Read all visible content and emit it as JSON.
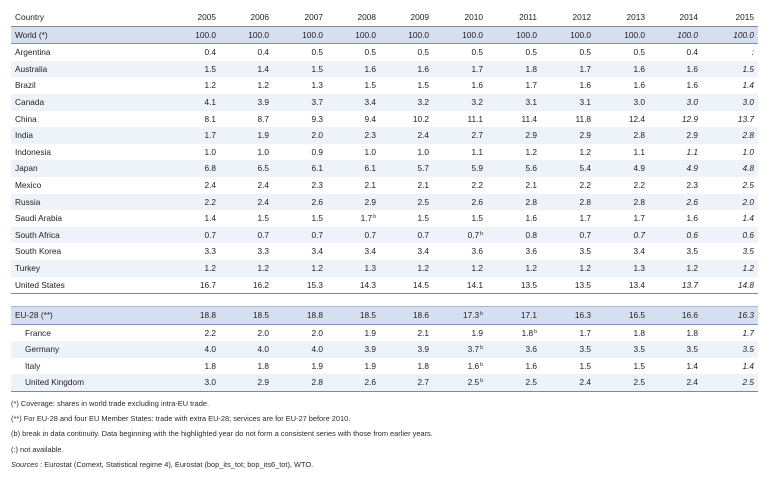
{
  "header": {
    "country_label": "Country",
    "years": [
      "2005",
      "2006",
      "2007",
      "2008",
      "2009",
      "2010",
      "2011",
      "2012",
      "2013",
      "2014",
      "2015"
    ]
  },
  "world": {
    "name": "World (*)",
    "values": [
      "100.0",
      "100.0",
      "100.0",
      "100.0",
      "100.0",
      "100.0",
      "100.0",
      "100.0",
      "100.0",
      "100.0",
      "100.0"
    ],
    "flags": [
      "",
      "",
      "",
      "",
      "",
      "",
      "",
      "",
      "",
      "",
      ""
    ],
    "italic": [
      9,
      10
    ]
  },
  "countries": [
    {
      "name": "Argentina",
      "values": [
        "0.4",
        "0.4",
        "0.5",
        "0.5",
        "0.5",
        "0.5",
        "0.5",
        "0.5",
        "0.5",
        "0.4",
        ":"
      ],
      "flags": [
        "",
        "",
        "",
        "",
        "",
        "",
        "",
        "",
        "",
        "",
        ""
      ],
      "italic": [
        10
      ]
    },
    {
      "name": "Australia",
      "values": [
        "1.5",
        "1.4",
        "1.5",
        "1.6",
        "1.6",
        "1.7",
        "1.8",
        "1.7",
        "1.6",
        "1.6",
        "1.5"
      ],
      "flags": [
        "",
        "",
        "",
        "",
        "",
        "",
        "",
        "",
        "",
        "",
        ""
      ],
      "italic": [
        10
      ]
    },
    {
      "name": "Brazil",
      "values": [
        "1.2",
        "1.2",
        "1.3",
        "1.5",
        "1.5",
        "1.6",
        "1.7",
        "1.6",
        "1.6",
        "1.6",
        "1.4"
      ],
      "flags": [
        "",
        "",
        "",
        "",
        "",
        "",
        "",
        "",
        "",
        "",
        ""
      ],
      "italic": [
        10
      ]
    },
    {
      "name": "Canada",
      "values": [
        "4.1",
        "3.9",
        "3.7",
        "3.4",
        "3.2",
        "3.2",
        "3.1",
        "3.1",
        "3.0",
        "3.0",
        "3.0"
      ],
      "flags": [
        "",
        "",
        "",
        "",
        "",
        "",
        "",
        "",
        "",
        "",
        ""
      ],
      "italic": [
        9,
        10
      ]
    },
    {
      "name": "China",
      "values": [
        "8.1",
        "8.7",
        "9.3",
        "9.4",
        "10.2",
        "11.1",
        "11.4",
        "11.8",
        "12.4",
        "12.9",
        "13.7"
      ],
      "flags": [
        "",
        "",
        "",
        "",
        "",
        "",
        "",
        "",
        "",
        "",
        ""
      ],
      "italic": [
        9,
        10
      ]
    },
    {
      "name": "India",
      "values": [
        "1.7",
        "1.9",
        "2.0",
        "2.3",
        "2.4",
        "2.7",
        "2.9",
        "2.9",
        "2.8",
        "2.9",
        "2.8"
      ],
      "flags": [
        "",
        "",
        "",
        "",
        "",
        "",
        "",
        "",
        "",
        "",
        ""
      ],
      "italic": [
        10
      ]
    },
    {
      "name": "Indonesia",
      "values": [
        "1.0",
        "1.0",
        "0.9",
        "1.0",
        "1.0",
        "1.1",
        "1.2",
        "1.2",
        "1.1",
        "1.1",
        "1.0"
      ],
      "flags": [
        "",
        "",
        "",
        "",
        "",
        "",
        "",
        "",
        "",
        "",
        ""
      ],
      "italic": [
        9,
        10
      ]
    },
    {
      "name": "Japan",
      "values": [
        "6.8",
        "6.5",
        "6.1",
        "6.1",
        "5.7",
        "5.9",
        "5.6",
        "5.4",
        "4.9",
        "4.9",
        "4.8"
      ],
      "flags": [
        "",
        "",
        "",
        "",
        "",
        "",
        "",
        "",
        "",
        "",
        ""
      ],
      "italic": [
        9,
        10
      ]
    },
    {
      "name": "Mexico",
      "values": [
        "2.4",
        "2.4",
        "2.3",
        "2.1",
        "2.1",
        "2.2",
        "2.1",
        "2.2",
        "2.2",
        "2.3",
        "2.5"
      ],
      "flags": [
        "",
        "",
        "",
        "",
        "",
        "",
        "",
        "",
        "",
        "",
        ""
      ],
      "italic": [
        10
      ]
    },
    {
      "name": "Russia",
      "values": [
        "2.2",
        "2.4",
        "2.6",
        "2.9",
        "2.5",
        "2.6",
        "2.8",
        "2.8",
        "2.8",
        "2.6",
        "2.0"
      ],
      "flags": [
        "",
        "",
        "",
        "",
        "",
        "",
        "",
        "",
        "",
        "",
        ""
      ],
      "italic": [
        9,
        10
      ]
    },
    {
      "name": "Saudi Arabia",
      "values": [
        "1.4",
        "1.5",
        "1.5",
        "1.7",
        "1.5",
        "1.5",
        "1.6",
        "1.7",
        "1.7",
        "1.6",
        "1.4"
      ],
      "flags": [
        "",
        "",
        "",
        "b",
        "",
        "",
        "",
        "",
        "",
        "",
        ""
      ],
      "italic": [
        10
      ]
    },
    {
      "name": "South Africa",
      "values": [
        "0.7",
        "0.7",
        "0.7",
        "0.7",
        "0.7",
        "0.7",
        "0.8",
        "0.7",
        "0.7",
        "0.6",
        "0.6"
      ],
      "flags": [
        "",
        "",
        "",
        "",
        "",
        "b",
        "",
        "",
        "",
        "",
        ""
      ],
      "italic": [
        8,
        9,
        10
      ]
    },
    {
      "name": "South Korea",
      "values": [
        "3.3",
        "3.3",
        "3.4",
        "3.4",
        "3.4",
        "3.6",
        "3.6",
        "3.5",
        "3.4",
        "3.5",
        "3.5"
      ],
      "flags": [
        "",
        "",
        "",
        "",
        "",
        "",
        "",
        "",
        "",
        "",
        ""
      ],
      "italic": [
        10
      ]
    },
    {
      "name": "Turkey",
      "values": [
        "1.2",
        "1.2",
        "1.2",
        "1.3",
        "1.2",
        "1.2",
        "1.2",
        "1.2",
        "1.3",
        "1.2",
        "1.2"
      ],
      "flags": [
        "",
        "",
        "",
        "",
        "",
        "",
        "",
        "",
        "",
        "",
        ""
      ],
      "italic": [
        10
      ]
    },
    {
      "name": "United States",
      "values": [
        "16.7",
        "16.2",
        "15.3",
        "14.3",
        "14.5",
        "14.1",
        "13.5",
        "13.5",
        "13.4",
        "13.7",
        "14.8"
      ],
      "flags": [
        "",
        "",
        "",
        "",
        "",
        "",
        "",
        "",
        "",
        "",
        ""
      ],
      "italic": [
        9,
        10
      ]
    }
  ],
  "eu": {
    "name": "EU-28 (**)",
    "values": [
      "18.8",
      "18.5",
      "18.8",
      "18.5",
      "18.6",
      "17.3",
      "17.1",
      "16.3",
      "16.5",
      "16.6",
      "16.3"
    ],
    "flags": [
      "",
      "",
      "",
      "",
      "",
      "b",
      "",
      "",
      "",
      "",
      ""
    ],
    "italic": [
      10
    ]
  },
  "members": [
    {
      "name": "France",
      "values": [
        "2.2",
        "2.0",
        "2.0",
        "1.9",
        "2.1",
        "1.9",
        "1.8",
        "1.7",
        "1.8",
        "1.8",
        "1.7"
      ],
      "flags": [
        "",
        "",
        "",
        "",
        "",
        "",
        "b",
        "",
        "",
        "",
        ""
      ],
      "italic": [
        10
      ]
    },
    {
      "name": "Germany",
      "values": [
        "4.0",
        "4.0",
        "4.0",
        "3.9",
        "3.9",
        "3.7",
        "3.6",
        "3.5",
        "3.5",
        "3.5",
        "3.5"
      ],
      "flags": [
        "",
        "",
        "",
        "",
        "",
        "b",
        "",
        "",
        "",
        "",
        ""
      ],
      "italic": [
        10
      ]
    },
    {
      "name": "Italy",
      "values": [
        "1.8",
        "1.8",
        "1.9",
        "1.9",
        "1.8",
        "1.6",
        "1.6",
        "1.5",
        "1.5",
        "1.4",
        "1.4"
      ],
      "flags": [
        "",
        "",
        "",
        "",
        "",
        "b",
        "",
        "",
        "",
        "",
        ""
      ],
      "italic": [
        10
      ]
    },
    {
      "name": "United Kingdom",
      "values": [
        "3.0",
        "2.9",
        "2.8",
        "2.6",
        "2.7",
        "2.5",
        "2.5",
        "2.4",
        "2.5",
        "2.4",
        "2.5"
      ],
      "flags": [
        "",
        "",
        "",
        "",
        "",
        "b",
        "",
        "",
        "",
        "",
        ""
      ],
      "italic": [
        10
      ]
    }
  ],
  "notes": {
    "coverage": "(*) Coverage: shares in world trade excluding intra-EU trade.",
    "eu_note": "(**) For EU-28 and four EU Member States: trade with extra EU-28; services are for EU-27 before 2010.",
    "break": "(b) break in data continuity.  Data beginning with the highlighted year do not form a consistent series with those from earlier years.",
    "na": "(:) not available.",
    "sources_label": "Sources",
    "sources_text": " : Eurostat (Comext, Statistical regime 4), Eurostat (bop_its_tot; bop_its6_tot), WTO."
  }
}
